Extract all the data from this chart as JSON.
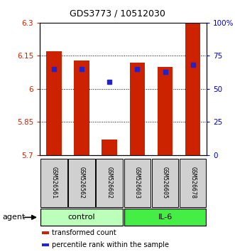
{
  "title": "GDS3773 / 10512030",
  "samples": [
    "GSM526561",
    "GSM526562",
    "GSM526602",
    "GSM526603",
    "GSM526605",
    "GSM526678"
  ],
  "bar_values": [
    6.17,
    6.13,
    5.77,
    6.12,
    6.1,
    6.3
  ],
  "percentile_values": [
    65,
    65,
    55,
    65,
    63,
    68
  ],
  "bar_bottom": 5.7,
  "ylim_left": [
    5.7,
    6.3
  ],
  "ylim_right": [
    0,
    100
  ],
  "yticks_left": [
    5.7,
    5.85,
    6.0,
    6.15,
    6.3
  ],
  "ytick_labels_left": [
    "5.7",
    "5.85",
    "6",
    "6.15",
    "6.3"
  ],
  "yticks_right": [
    0,
    25,
    50,
    75,
    100
  ],
  "ytick_labels_right": [
    "0",
    "25",
    "50",
    "75",
    "100%"
  ],
  "bar_color": "#cc2200",
  "percentile_color": "#2222cc",
  "groups": [
    {
      "label": "control",
      "n": 3,
      "color": "#bbffbb"
    },
    {
      "label": "IL-6",
      "n": 3,
      "color": "#44ee44"
    }
  ],
  "legend_items": [
    {
      "label": "transformed count",
      "color": "#cc2200"
    },
    {
      "label": "percentile rank within the sample",
      "color": "#2222cc"
    }
  ],
  "bar_width": 0.55,
  "background_color": "#ffffff",
  "left_label_color": "#cc2200",
  "right_label_color": "#0000cc",
  "sample_box_color": "#d0d0d0",
  "title_fontsize": 9,
  "tick_fontsize": 7.5,
  "sample_fontsize": 6,
  "group_fontsize": 8,
  "legend_fontsize": 7
}
